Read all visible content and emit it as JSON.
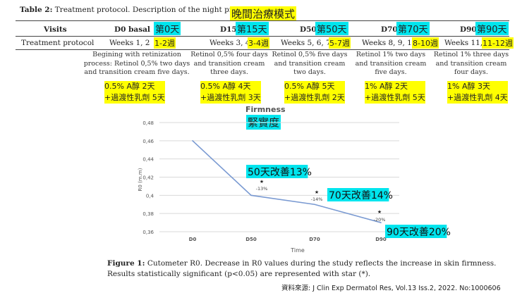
{
  "table": {
    "caption_bold": "Table 2:",
    "caption_text": " Treatment protocol. Description of the night protocol.",
    "caption_cn": "晚間治療模式",
    "visits_label": "Visits",
    "row_label": "Treatment protocol",
    "columns": [
      {
        "visit": "D0 basal",
        "visit_cn": "第0天",
        "weeks": "Weeks  1, 2",
        "weeks_cn": "1-2週",
        "description": [
          "Begining with retinization",
          "process: Retinol 0,5% two days",
          "and transition cream five days."
        ],
        "note": [
          "0.5% A醇 2天",
          "+過渡性乳劑 5天"
        ]
      },
      {
        "visit": "D15",
        "visit_cn": "第15天",
        "weeks": "Weeks  3, 4",
        "weeks_cn": "3-4週",
        "description": [
          "Retinol 0,5% four days",
          "and transition  cream",
          "three days."
        ],
        "note": [
          "0.5% A醇 4天",
          "+過渡性乳劑 3天"
        ]
      },
      {
        "visit": "D50",
        "visit_cn": "第50天",
        "weeks": "Weeks 5, 6, 7",
        "weeks_cn": "5-7週",
        "description": [
          "Retinol 0,5% five days",
          "and transition cream",
          "two days."
        ],
        "note": [
          "0.5% A醇 5天",
          "+過渡性乳劑 2天"
        ]
      },
      {
        "visit": "D70",
        "visit_cn": "第70天",
        "weeks": "Weeks  8, 9, 10",
        "weeks_cn": "8-10週",
        "description": [
          "Retinol 1% two days",
          "and transition cream",
          "five days."
        ],
        "note": [
          "1% A醇 2天",
          "+過渡性乳劑 5天"
        ]
      },
      {
        "visit": "D90",
        "visit_cn": "第90天",
        "weeks": "Weeks 11, 12",
        "weeks_cn": "11-12週",
        "description": [
          "Retinol 1% three days",
          "and transition cream",
          "four days."
        ],
        "note": [
          "1% A醇 3天",
          "+過渡性乳劑 4天"
        ]
      }
    ]
  },
  "chart_data": {
    "type": "line",
    "title": "Firmness",
    "title_cn": "緊實度",
    "xlabel": "Time",
    "ylabel": "R0 (m.m)",
    "categories": [
      "D0",
      "D50",
      "D70",
      "D90"
    ],
    "values": [
      0.46,
      0.4,
      0.39,
      0.37
    ],
    "ylim": [
      0.36,
      0.48
    ],
    "yticks": [
      "0,48",
      "0,46",
      "0,44",
      "0,42",
      "0,4",
      "0,38",
      "0,36"
    ],
    "grid": true,
    "significance": [
      {
        "category": "D50",
        "marker": "★",
        "label": "-13%",
        "note_cn": "50天改善13%"
      },
      {
        "category": "D70",
        "marker": "★",
        "label": "-14%",
        "note_cn": "70天改善14%"
      },
      {
        "category": "D90",
        "marker": "★",
        "label": "-20%",
        "note_cn": "90天改善20%"
      }
    ],
    "line_color": "#7a9ad2",
    "grid_color": "#d9d9d9"
  },
  "figure": {
    "caption_bold": "Figure 1:",
    "caption_line1": " Cutometer R0. Decrease in R0 values during the study reflects the increase in skin firmness.",
    "caption_line2": "Results statistically significant (p<0.05) are represented with star (*)."
  },
  "source": "資料來源: J Clin Exp Dermatol Res, Vol.13 Iss.2, 2022. No:1000606"
}
